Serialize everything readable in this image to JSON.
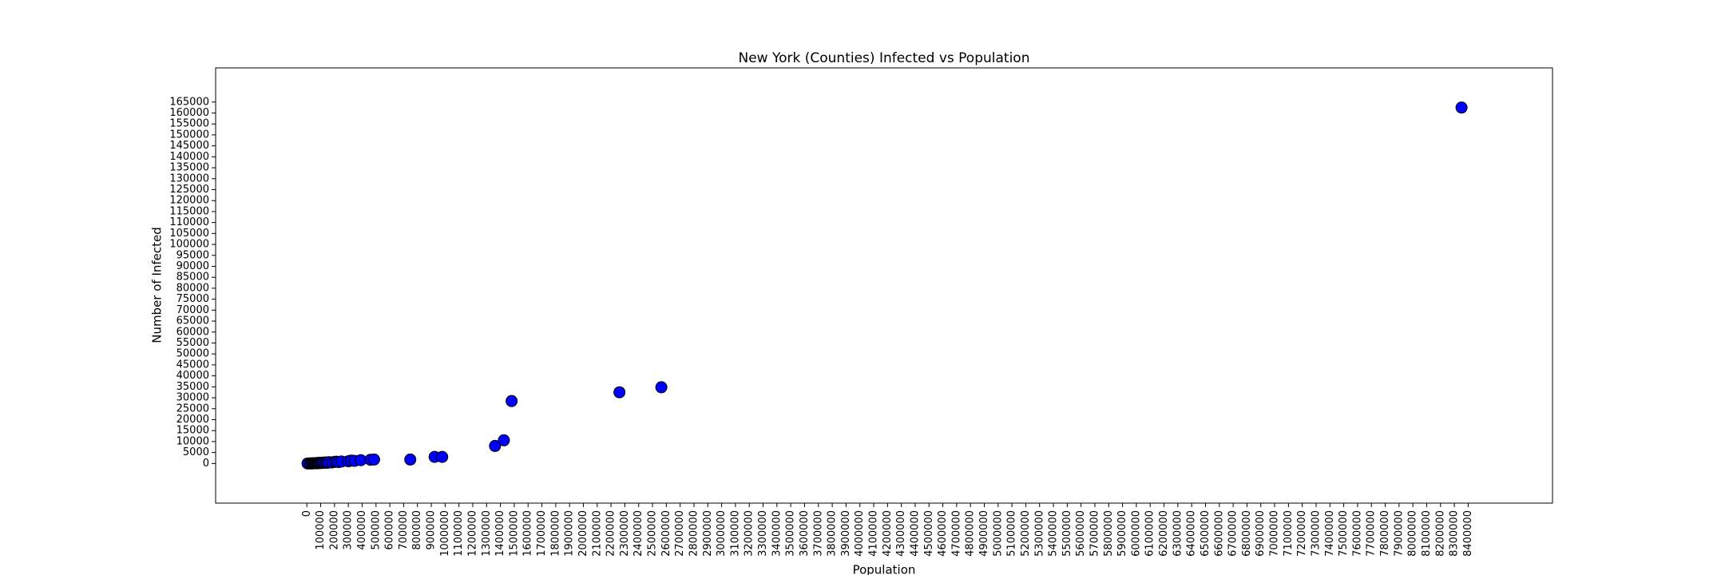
{
  "chart_data": {
    "type": "scatter",
    "title": "New York (Counties) Infected vs Population",
    "xlabel": "Population",
    "ylabel": "Number of Infected",
    "x": [
      5000,
      18000,
      27000,
      36000,
      44000,
      48000,
      55000,
      60000,
      65000,
      70000,
      75000,
      80000,
      85000,
      90000,
      95000,
      100000,
      108000,
      115000,
      120000,
      130000,
      140000,
      150000,
      160000,
      180000,
      200000,
      215000,
      230000,
      250000,
      300000,
      320000,
      345000,
      390000,
      460000,
      486000,
      748000,
      924000,
      979000,
      1361000,
      1425000,
      1481000,
      2261000,
      2564000,
      8352000
    ],
    "values": [
      10,
      20,
      30,
      40,
      50,
      80,
      100,
      120,
      150,
      100,
      200,
      130,
      250,
      180,
      300,
      200,
      350,
      250,
      400,
      300,
      500,
      350,
      600,
      450,
      700,
      800,
      650,
      900,
      1000,
      1300,
      1200,
      1500,
      1700,
      1800,
      1800,
      3000,
      3000,
      8000,
      10600,
      28500,
      32500,
      34800,
      162500
    ],
    "color": "#0000ff",
    "edgecolor": "#000000",
    "xlim": [
      -660000,
      9010000
    ],
    "ylim": [
      -18100,
      180600
    ],
    "xticks": [
      0,
      100000,
      200000,
      300000,
      400000,
      500000,
      600000,
      700000,
      800000,
      900000,
      1000000,
      1100000,
      1200000,
      1300000,
      1400000,
      1500000,
      1600000,
      1700000,
      1800000,
      1900000,
      2000000,
      2100000,
      2200000,
      2300000,
      2400000,
      2500000,
      2600000,
      2700000,
      2800000,
      2900000,
      3000000,
      3100000,
      3200000,
      3300000,
      3400000,
      3500000,
      3600000,
      3700000,
      3800000,
      3900000,
      4000000,
      4100000,
      4200000,
      4300000,
      4400000,
      4500000,
      4600000,
      4700000,
      4800000,
      4900000,
      5000000,
      5100000,
      5200000,
      5300000,
      5400000,
      5500000,
      5600000,
      5700000,
      5800000,
      5900000,
      6000000,
      6100000,
      6200000,
      6300000,
      6400000,
      6500000,
      6600000,
      6700000,
      6800000,
      6900000,
      7000000,
      7100000,
      7200000,
      7300000,
      7400000,
      7500000,
      7600000,
      7700000,
      7800000,
      7900000,
      8000000,
      8100000,
      8200000,
      8300000,
      8400000
    ],
    "yticks": [
      0,
      5000,
      10000,
      15000,
      20000,
      25000,
      30000,
      35000,
      40000,
      45000,
      50000,
      55000,
      60000,
      65000,
      70000,
      75000,
      80000,
      85000,
      90000,
      95000,
      100000,
      105000,
      110000,
      115000,
      120000,
      125000,
      130000,
      135000,
      140000,
      145000,
      150000,
      155000,
      160000,
      165000
    ]
  }
}
